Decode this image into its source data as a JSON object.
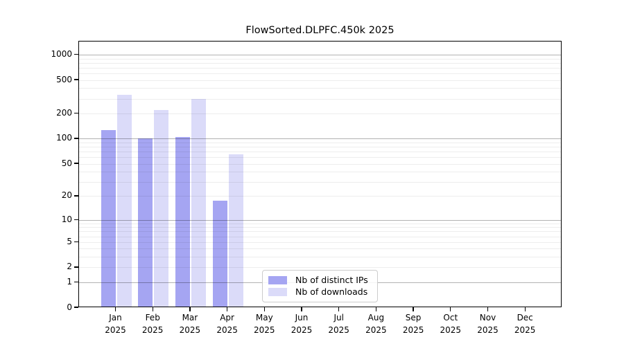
{
  "title": "FlowSorted.DLPFC.450k 2025",
  "chart_data": {
    "type": "bar",
    "title": "FlowSorted.DLPFC.450k 2025",
    "categories": [
      "Jan 2025",
      "Feb 2025",
      "Mar 2025",
      "Apr 2025",
      "May 2025",
      "Jun 2025",
      "Jul 2025",
      "Aug 2025",
      "Sep 2025",
      "Oct 2025",
      "Nov 2025",
      "Dec 2025"
    ],
    "series": [
      {
        "name": "Nb of distinct IPs",
        "color": "#a5a5f2",
        "values": [
          122,
          97,
          102,
          17,
          null,
          null,
          null,
          null,
          null,
          null,
          null,
          null
        ]
      },
      {
        "name": "Nb of downloads",
        "color": "#dbdbf9",
        "values": [
          325,
          213,
          292,
          63,
          null,
          null,
          null,
          null,
          null,
          null,
          null,
          null
        ]
      }
    ],
    "xlabel": "",
    "ylabel": "",
    "yscale": "log1p",
    "yticks": [
      0,
      1,
      2,
      5,
      10,
      20,
      50,
      100,
      200,
      500,
      1000
    ],
    "ylim": [
      0,
      1460
    ],
    "grid": "horizontal, minor light + darker at powers of 10",
    "legend_position": "inside-bottom-center"
  },
  "legend": {
    "items": [
      {
        "label": "Nb of distinct IPs",
        "color": "#a5a5f2"
      },
      {
        "label": "Nb of downloads",
        "color": "#dbdbf9"
      }
    ]
  }
}
